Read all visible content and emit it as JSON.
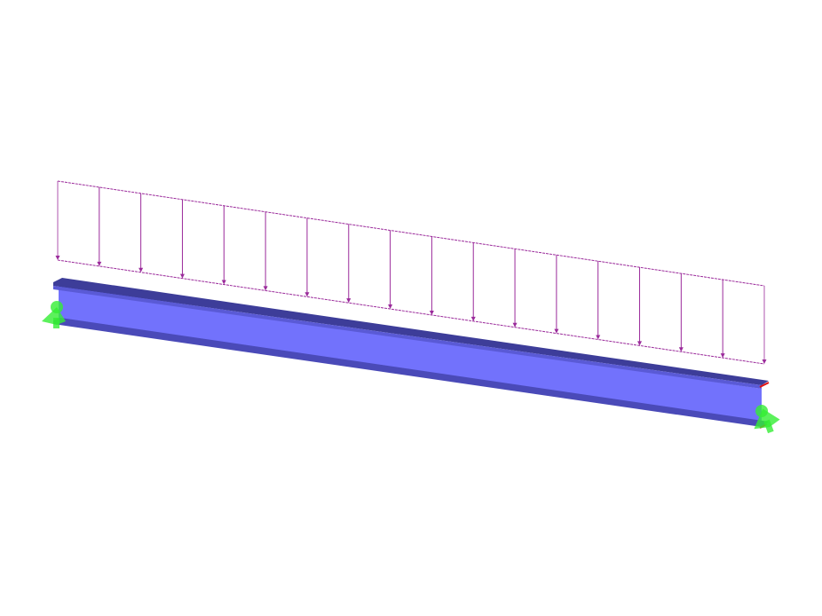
{
  "scene": {
    "background": "#ffffff",
    "beam": {
      "section": "I-beam",
      "web_color": "#7272fc",
      "top_flange_color": "#3d3d99",
      "top_flange_edge_color": "#5a5ad6",
      "bottom_flange_color": "#4a4ab8",
      "end_marker_color": "#e01010"
    },
    "load": {
      "type": "uniformly distributed member load",
      "color": "#9b2b9b",
      "arrow_count": 18
    },
    "supports": {
      "count": 2,
      "color": "#33ee33"
    }
  }
}
